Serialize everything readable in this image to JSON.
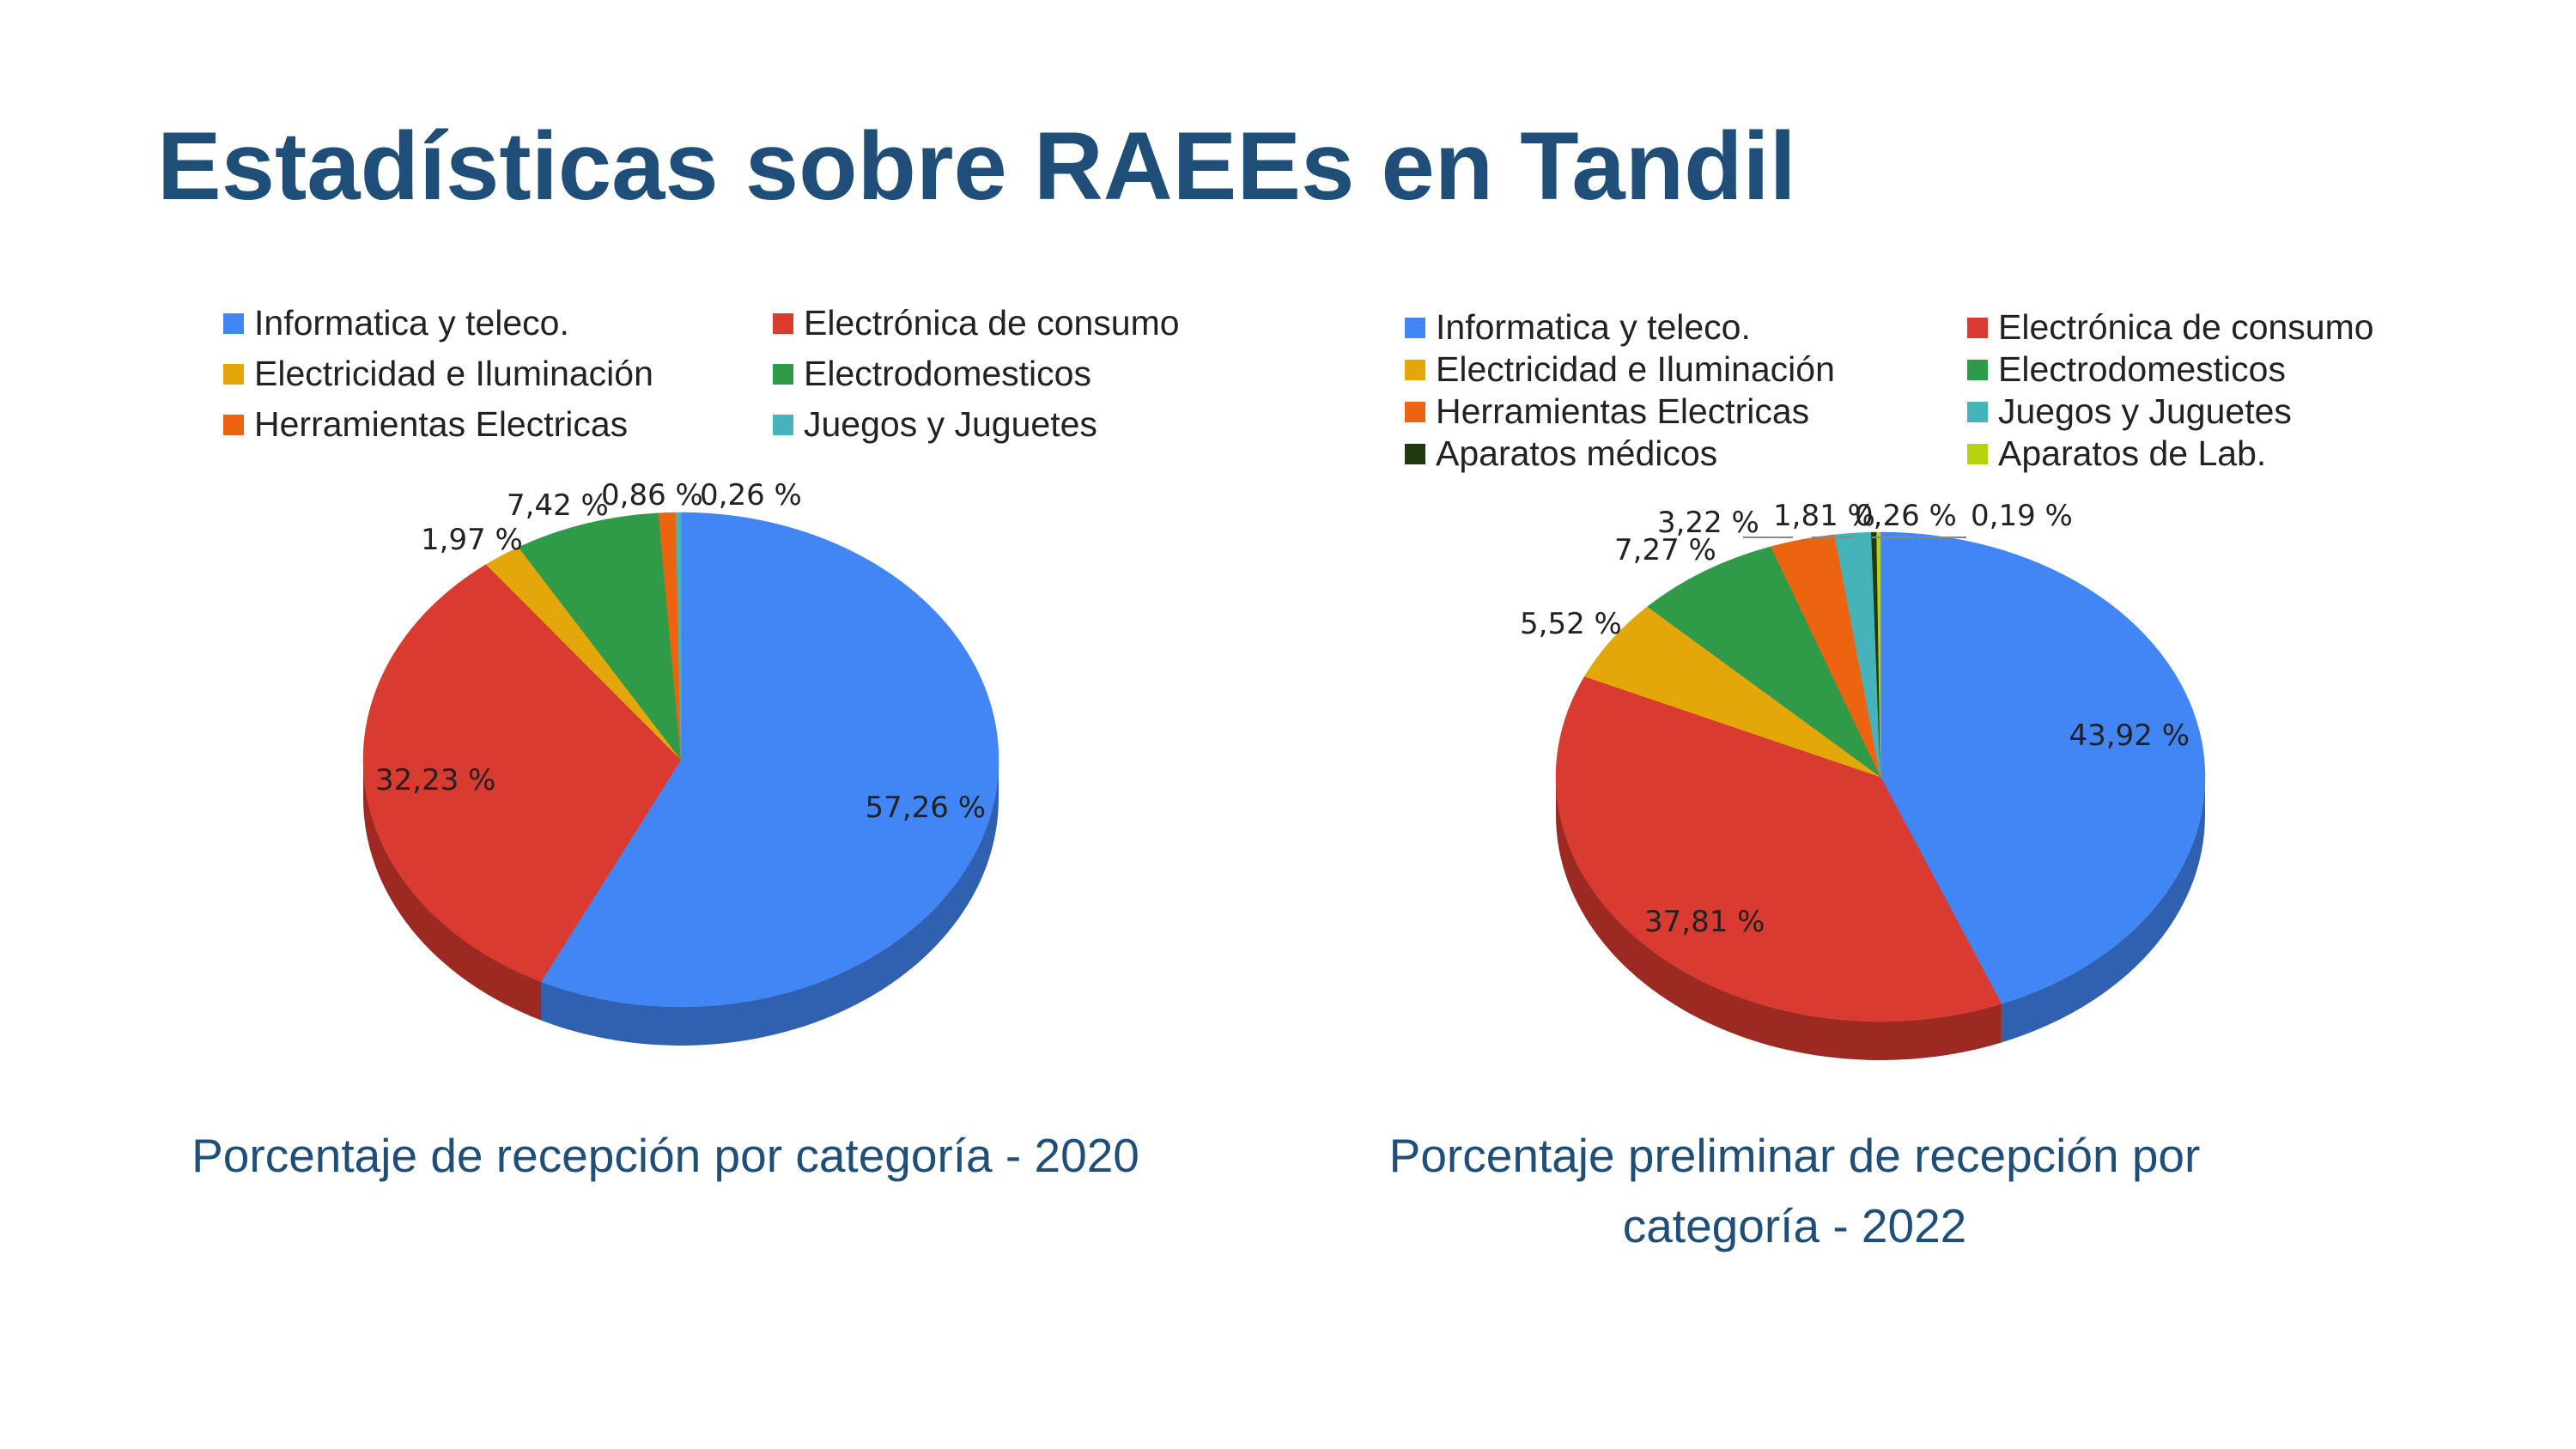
{
  "title": "Estadísticas sobre RAEEs en Tandil",
  "chart_data": [
    {
      "type": "pie",
      "caption": "Porcentaje de recepción por categoría - 2020",
      "legend": [
        {
          "label": "Informatica y teleco.",
          "color": "#4285f4"
        },
        {
          "label": "Electrónica de consumo",
          "color": "#d93b30"
        },
        {
          "label": "Electricidad e Iluminación",
          "color": "#e3a709"
        },
        {
          "label": "Electrodomesticos",
          "color": "#2f9a48"
        },
        {
          "label": "Herramientas Electricas",
          "color": "#ed6410"
        },
        {
          "label": "Juegos y Juguetes",
          "color": "#46b2ba"
        }
      ],
      "slices": [
        {
          "label": "Informatica y teleco.",
          "value": 57.26,
          "text": "57,26 %",
          "color": "#4285f4"
        },
        {
          "label": "Electrónica de consumo",
          "value": 32.23,
          "text": "32,23 %",
          "color": "#d93b30"
        },
        {
          "label": "Electricidad e Iluminación",
          "value": 1.97,
          "text": "1,97 %",
          "color": "#e3a709"
        },
        {
          "label": "Electrodomesticos",
          "value": 7.42,
          "text": "7,42 %",
          "color": "#2f9a48"
        },
        {
          "label": "Herramientas Electricas",
          "value": 0.86,
          "text": "0,86 %",
          "color": "#ed6410"
        },
        {
          "label": "Juegos y Juguetes",
          "value": 0.26,
          "text": "0,26 %",
          "color": "#46b2ba"
        }
      ]
    },
    {
      "type": "pie",
      "caption": "Porcentaje preliminar de recepción por categoría - 2022",
      "legend": [
        {
          "label": "Informatica y teleco.",
          "color": "#4285f4"
        },
        {
          "label": "Electrónica de consumo",
          "color": "#d93b30"
        },
        {
          "label": "Electricidad e Iluminación",
          "color": "#e3a709"
        },
        {
          "label": "Electrodomesticos",
          "color": "#2f9a48"
        },
        {
          "label": "Herramientas Electricas",
          "color": "#ed6410"
        },
        {
          "label": "Juegos y Juguetes",
          "color": "#46b2ba"
        },
        {
          "label": "Aparatos médicos",
          "color": "#1f3a0f"
        },
        {
          "label": "Aparatos de Lab.",
          "color": "#b6d30d"
        }
      ],
      "slices": [
        {
          "label": "Informatica y teleco.",
          "value": 43.92,
          "text": "43,92 %",
          "color": "#4285f4"
        },
        {
          "label": "Electrónica de consumo",
          "value": 37.81,
          "text": "37,81 %",
          "color": "#d93b30"
        },
        {
          "label": "Electricidad e Iluminación",
          "value": 5.52,
          "text": "5,52 %",
          "color": "#e3a709"
        },
        {
          "label": "Electrodomesticos",
          "value": 7.27,
          "text": "7,27 %",
          "color": "#2f9a48"
        },
        {
          "label": "Herramientas Electricas",
          "value": 3.22,
          "text": "3,22 %",
          "color": "#ed6410"
        },
        {
          "label": "Juegos y Juguetes",
          "value": 1.81,
          "text": "1,81 %",
          "color": "#46b2ba"
        },
        {
          "label": "Aparatos médicos",
          "value": 0.26,
          "text": "0,26 %",
          "color": "#1f3a0f"
        },
        {
          "label": "Aparatos de Lab.",
          "value": 0.19,
          "text": "0,19 %",
          "color": "#b6d30d"
        }
      ]
    }
  ]
}
